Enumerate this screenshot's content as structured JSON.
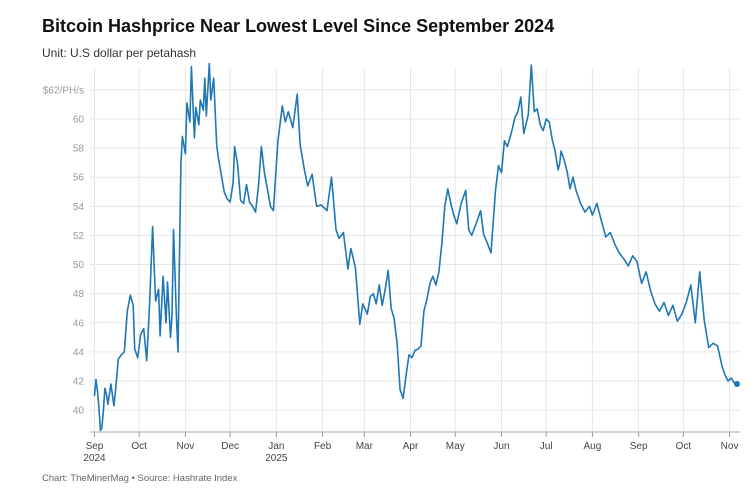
{
  "title": "Bitcoin Hashprice Near Lowest Level Since September 2024",
  "subtitle": "Unit: U.S dollar per petahash",
  "footer": "Chart: TheMinerMag • Source: Hashrate Index",
  "colors": {
    "line": "#1f77b4",
    "grid": "#e6e6e6"
  },
  "chart_data": {
    "type": "line",
    "title": "Bitcoin Hashprice Near Lowest Level Since September 2024",
    "subtitle": "Unit: U.S dollar per petahash",
    "xlabel": "",
    "ylabel": "",
    "ylim": [
      38.5,
      63.5
    ],
    "y_ticks": [
      {
        "value": 40,
        "label": "40"
      },
      {
        "value": 42,
        "label": "42"
      },
      {
        "value": 44,
        "label": "44"
      },
      {
        "value": 46,
        "label": "46"
      },
      {
        "value": 48,
        "label": "48"
      },
      {
        "value": 50,
        "label": "50"
      },
      {
        "value": 52,
        "label": "52"
      },
      {
        "value": 54,
        "label": "54"
      },
      {
        "value": 56,
        "label": "56"
      },
      {
        "value": 58,
        "label": "58"
      },
      {
        "value": 60,
        "label": "60"
      },
      {
        "value": 62,
        "label": "$62/PH/s"
      }
    ],
    "x_ticks": [
      {
        "value": "2024-09-01",
        "label": "Sep",
        "label2": "2024"
      },
      {
        "value": "2024-10-01",
        "label": "Oct"
      },
      {
        "value": "2024-11-01",
        "label": "Nov"
      },
      {
        "value": "2024-12-01",
        "label": "Dec"
      },
      {
        "value": "2025-01-01",
        "label": "Jan",
        "label2": "2025"
      },
      {
        "value": "2025-02-01",
        "label": "Feb"
      },
      {
        "value": "2025-03-01",
        "label": "Mar"
      },
      {
        "value": "2025-04-01",
        "label": "Apr"
      },
      {
        "value": "2025-05-01",
        "label": "May"
      },
      {
        "value": "2025-06-01",
        "label": "Jun"
      },
      {
        "value": "2025-07-01",
        "label": "Jul"
      },
      {
        "value": "2025-08-01",
        "label": "Aug"
      },
      {
        "value": "2025-09-01",
        "label": "Sep"
      },
      {
        "value": "2025-10-01",
        "label": "Oct"
      },
      {
        "value": "2025-11-01",
        "label": "Nov"
      }
    ],
    "xlim": [
      "2024-08-29",
      "2025-11-08"
    ],
    "grid": true,
    "legend": "none",
    "series": [
      {
        "end_marker": true,
        "x": [
          "2024-09-01",
          "2024-09-02",
          "2024-09-03",
          "2024-09-04",
          "2024-09-05",
          "2024-09-06",
          "2024-09-07",
          "2024-09-08",
          "2024-09-09",
          "2024-09-10",
          "2024-09-12",
          "2024-09-14",
          "2024-09-15",
          "2024-09-17",
          "2024-09-19",
          "2024-09-21",
          "2024-09-23",
          "2024-09-25",
          "2024-09-27",
          "2024-09-28",
          "2024-09-30",
          "2024-10-02",
          "2024-10-04",
          "2024-10-06",
          "2024-10-08",
          "2024-10-10",
          "2024-10-12",
          "2024-10-14",
          "2024-10-15",
          "2024-10-17",
          "2024-10-19",
          "2024-10-20",
          "2024-10-22",
          "2024-10-23",
          "2024-10-24",
          "2024-10-26",
          "2024-10-27",
          "2024-10-29",
          "2024-10-30",
          "2024-11-01",
          "2024-11-02",
          "2024-11-04",
          "2024-11-05",
          "2024-11-07",
          "2024-11-08",
          "2024-11-10",
          "2024-11-11",
          "2024-11-13",
          "2024-11-14",
          "2024-11-15",
          "2024-11-17",
          "2024-11-18",
          "2024-11-20",
          "2024-11-22",
          "2024-11-23",
          "2024-11-25",
          "2024-11-27",
          "2024-11-29",
          "2024-12-01",
          "2024-12-03",
          "2024-12-04",
          "2024-12-06",
          "2024-12-08",
          "2024-12-10",
          "2024-12-12",
          "2024-12-14",
          "2024-12-16",
          "2024-12-18",
          "2024-12-20",
          "2024-12-22",
          "2024-12-24",
          "2024-12-26",
          "2024-12-28",
          "2024-12-30",
          "2025-01-02",
          "2025-01-05",
          "2025-01-07",
          "2025-01-09",
          "2025-01-12",
          "2025-01-15",
          "2025-01-17",
          "2025-01-20",
          "2025-01-22",
          "2025-01-25",
          "2025-01-28",
          "2025-01-31",
          "2025-02-02",
          "2025-02-04",
          "2025-02-07",
          "2025-02-10",
          "2025-02-12",
          "2025-02-15",
          "2025-02-18",
          "2025-02-20",
          "2025-02-23",
          "2025-02-26",
          "2025-02-28",
          "2025-03-03",
          "2025-03-05",
          "2025-03-07",
          "2025-03-09",
          "2025-03-11",
          "2025-03-13",
          "2025-03-15",
          "2025-03-17",
          "2025-03-19",
          "2025-03-21",
          "2025-03-23",
          "2025-03-25",
          "2025-03-27",
          "2025-03-29",
          "2025-03-31",
          "2025-04-02",
          "2025-04-04",
          "2025-04-06",
          "2025-04-08",
          "2025-04-10",
          "2025-04-12",
          "2025-04-14",
          "2025-04-16",
          "2025-04-18",
          "2025-04-20",
          "2025-04-22",
          "2025-04-24",
          "2025-04-26",
          "2025-04-28",
          "2025-04-30",
          "2025-05-02",
          "2025-05-05",
          "2025-05-08",
          "2025-05-10",
          "2025-05-12",
          "2025-05-15",
          "2025-05-18",
          "2025-05-20",
          "2025-05-22",
          "2025-05-25",
          "2025-05-28",
          "2025-05-30",
          "2025-06-01",
          "2025-06-03",
          "2025-06-05",
          "2025-06-08",
          "2025-06-10",
          "2025-06-12",
          "2025-06-14",
          "2025-06-16",
          "2025-06-19",
          "2025-06-21",
          "2025-06-23",
          "2025-06-25",
          "2025-06-27",
          "2025-06-29",
          "2025-07-01",
          "2025-07-03",
          "2025-07-05",
          "2025-07-07",
          "2025-07-09",
          "2025-07-10",
          "2025-07-11",
          "2025-07-13",
          "2025-07-15",
          "2025-07-17",
          "2025-07-19",
          "2025-07-21",
          "2025-07-24",
          "2025-07-27",
          "2025-07-30",
          "2025-08-01",
          "2025-08-04",
          "2025-08-07",
          "2025-08-10",
          "2025-08-13",
          "2025-08-16",
          "2025-08-19",
          "2025-08-22",
          "2025-08-25",
          "2025-08-28",
          "2025-08-31",
          "2025-09-03",
          "2025-09-06",
          "2025-09-09",
          "2025-09-12",
          "2025-09-15",
          "2025-09-18",
          "2025-09-21",
          "2025-09-24",
          "2025-09-27",
          "2025-09-30",
          "2025-10-03",
          "2025-10-06",
          "2025-10-09",
          "2025-10-12",
          "2025-10-15",
          "2025-10-18",
          "2025-10-21",
          "2025-10-24",
          "2025-10-27",
          "2025-10-29",
          "2025-10-31",
          "2025-11-02",
          "2025-11-04",
          "2025-11-06"
        ],
        "y": [
          41.0,
          42.1,
          41.3,
          40.2,
          38.6,
          38.8,
          40.0,
          41.5,
          41.1,
          40.4,
          41.8,
          40.3,
          41.2,
          43.5,
          43.8,
          44.0,
          46.8,
          47.9,
          47.2,
          44.2,
          43.6,
          45.2,
          45.6,
          43.4,
          47.3,
          52.6,
          47.5,
          48.3,
          45.1,
          49.2,
          46.0,
          48.8,
          45.0,
          46.5,
          52.4,
          46.3,
          44.0,
          56.9,
          58.8,
          57.6,
          61.1,
          59.8,
          63.6,
          58.7,
          60.8,
          59.6,
          61.3,
          60.6,
          62.8,
          60.2,
          63.8,
          61.3,
          62.8,
          58.2,
          57.4,
          56.2,
          55.0,
          54.5,
          54.3,
          55.6,
          58.1,
          56.9,
          54.4,
          54.2,
          55.5,
          54.3,
          54.0,
          53.6,
          55.4,
          58.1,
          56.3,
          55.2,
          54.0,
          53.7,
          58.4,
          60.9,
          59.8,
          60.5,
          59.4,
          61.7,
          58.2,
          56.4,
          55.4,
          56.2,
          54.0,
          54.1,
          53.9,
          53.7,
          56.0,
          52.4,
          51.8,
          52.2,
          49.7,
          51.1,
          49.8,
          45.9,
          47.3,
          46.6,
          47.8,
          48.0,
          47.3,
          48.6,
          47.2,
          48.3,
          49.6,
          47.0,
          46.3,
          44.6,
          41.4,
          40.8,
          42.4,
          43.8,
          43.6,
          44.1,
          44.2,
          44.4,
          46.8,
          47.6,
          48.7,
          49.2,
          48.6,
          49.5,
          51.4,
          54.0,
          55.2,
          54.2,
          53.4,
          52.8,
          54.2,
          55.1,
          52.4,
          52.0,
          52.8,
          53.7,
          52.1,
          51.6,
          50.8,
          55.1,
          56.8,
          56.3,
          58.5,
          58.1,
          59.2,
          60.1,
          60.5,
          61.5,
          59.0,
          60.3,
          63.7,
          60.5,
          60.7,
          59.6,
          59.2,
          60.0,
          59.8,
          58.6,
          57.8,
          56.5,
          56.9,
          57.8,
          57.2,
          56.4,
          55.2,
          56.0,
          55.1,
          54.2,
          53.6,
          54.0,
          53.4,
          54.2,
          53.0,
          51.9,
          52.2,
          51.4,
          50.8,
          50.4,
          49.9,
          50.6,
          50.2,
          48.7,
          49.5,
          48.2,
          47.3,
          46.8,
          47.4,
          46.5,
          47.2,
          46.1,
          46.6,
          47.4,
          48.6,
          46.0,
          49.5,
          46.2,
          44.3,
          44.6,
          44.4,
          43.0,
          42.4,
          42.0,
          42.2,
          41.9,
          41.8
        ]
      }
    ]
  }
}
